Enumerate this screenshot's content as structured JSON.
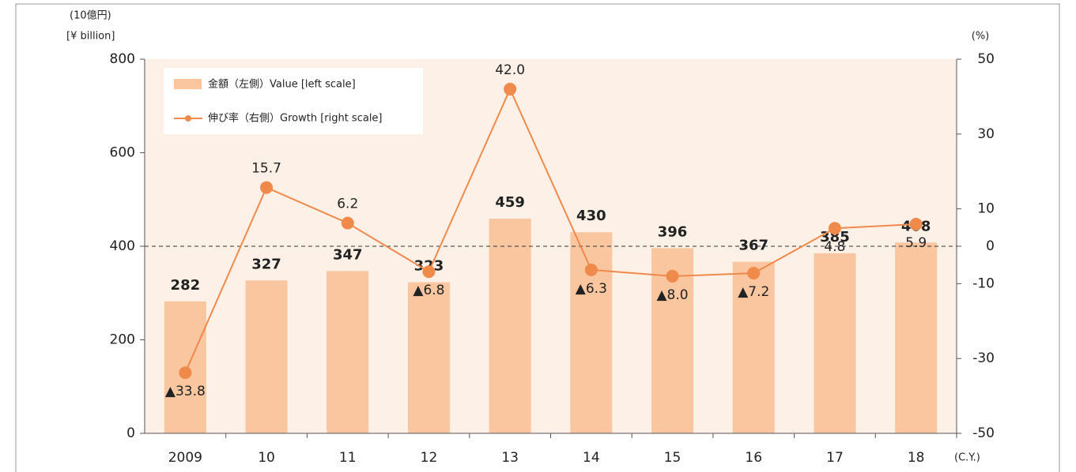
{
  "chart_data": {
    "type": "bar_line",
    "ylabel": "(10億円)",
    "ylabel_en": "[¥ billion]",
    "y2label": "(%)",
    "xlabel": "(C.Y.)",
    "categories": [
      "2009",
      "10",
      "11",
      "12",
      "13",
      "14",
      "15",
      "16",
      "17",
      "18"
    ],
    "series": [
      {
        "name": "金額（左側）Value [left scale]",
        "type": "bar",
        "color": "#f9c6a0",
        "values": [
          282,
          327,
          347,
          323,
          459,
          430,
          396,
          367,
          385,
          408
        ]
      },
      {
        "name": "伸び率（右側）Growth [right scale]",
        "type": "line",
        "color": "#f08a4b",
        "axis": "y2",
        "values": [
          -33.8,
          15.7,
          6.2,
          -6.8,
          42.0,
          -6.3,
          -8.0,
          -7.2,
          4.8,
          5.9
        ],
        "value_labels": [
          "▲33.8",
          "15.7",
          "6.2",
          "▲6.8",
          "42.0",
          "▲6.3",
          "▲8.0",
          "▲7.2",
          "4.8",
          "5.9"
        ]
      }
    ],
    "ylim": [
      0,
      800
    ],
    "yticks": [
      0,
      200,
      400,
      600,
      800
    ],
    "y2lim": [
      -50,
      50
    ],
    "y2ticks": [
      -50,
      -30,
      -10,
      0,
      10,
      30,
      50
    ],
    "reference_line": {
      "axis": "y2",
      "value": 0,
      "style": "dashed"
    },
    "legend": "top-left",
    "background": "#fdf0e6"
  }
}
